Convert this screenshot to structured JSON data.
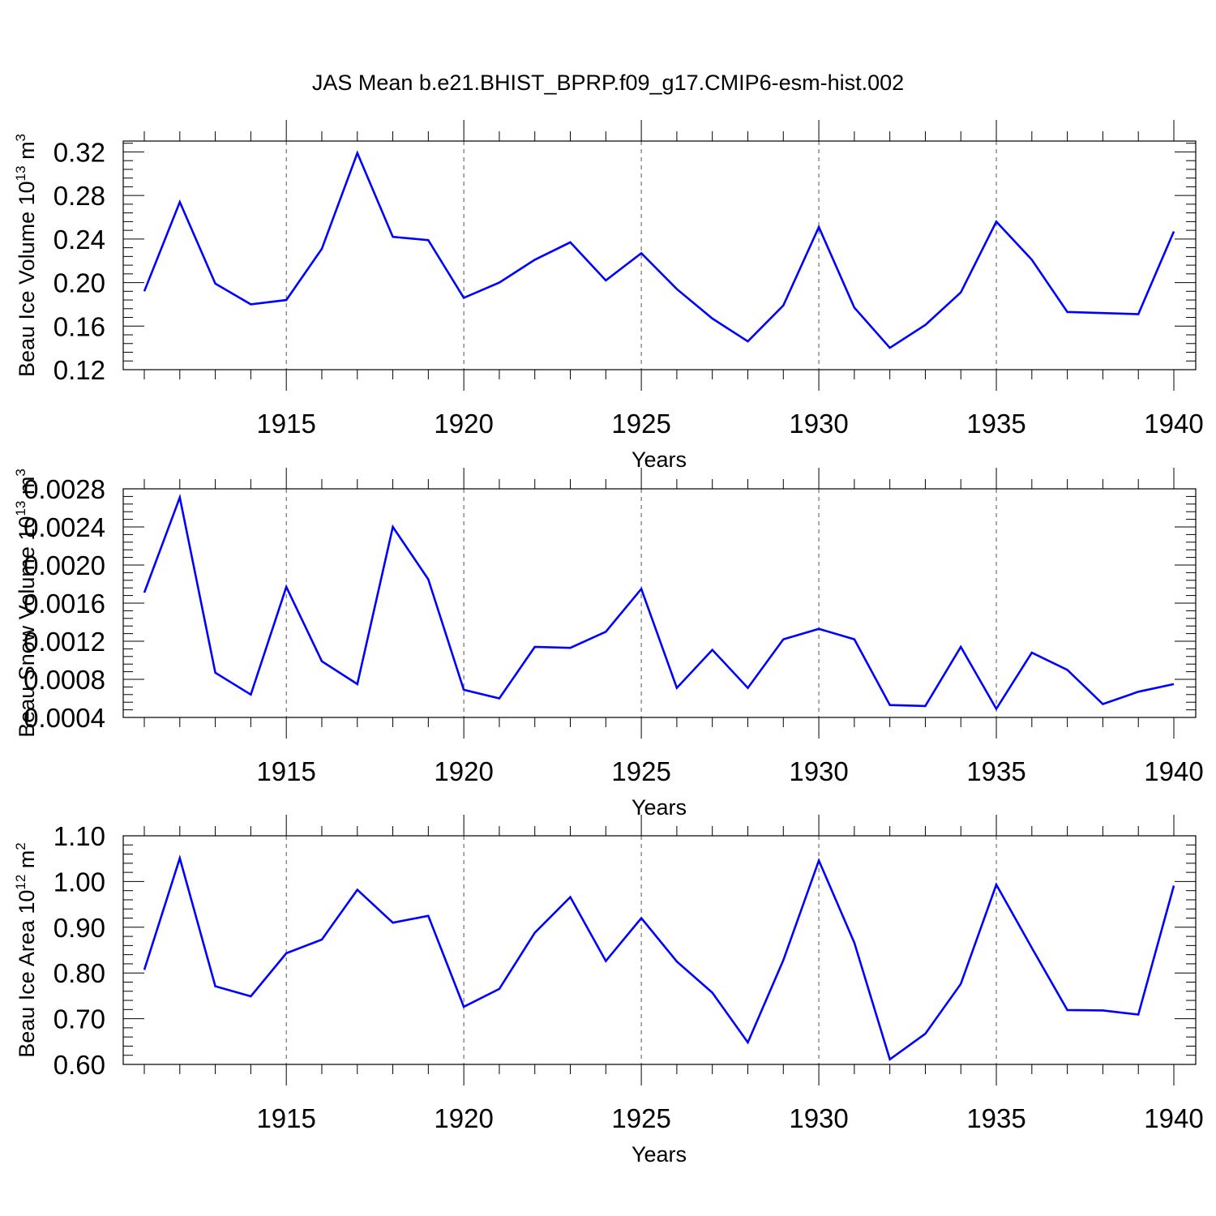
{
  "title": "JAS Mean b.e21.BHIST_BPRP.f09_g17.CMIP6-esm-hist.002",
  "colors": {
    "series": "#0000ff",
    "axis": "#000000",
    "grid": "#555555"
  },
  "chart_data": [
    {
      "type": "line",
      "xlabel": "Years",
      "ylabel": "Beau Ice Volume 10",
      "ylabel_sup": "13",
      "ylabel_unit": "m",
      "ylabel_unit_sup": "3",
      "xlim": [
        1911,
        1940
      ],
      "ylim": [
        0.12,
        0.33
      ],
      "x_ticks": [
        1915,
        1920,
        1925,
        1930,
        1935,
        1940
      ],
      "y_ticks": [
        "0.12",
        "0.16",
        "0.20",
        "0.24",
        "0.28",
        "0.32"
      ],
      "grid": "vertical dashed at major x ticks",
      "x": [
        1911,
        1912,
        1913,
        1914,
        1915,
        1916,
        1917,
        1918,
        1919,
        1920,
        1921,
        1922,
        1923,
        1924,
        1925,
        1926,
        1927,
        1928,
        1929,
        1930,
        1931,
        1932,
        1933,
        1934,
        1935,
        1936,
        1937,
        1938,
        1939,
        1940
      ],
      "values": [
        0.192,
        0.274,
        0.199,
        0.18,
        0.184,
        0.231,
        0.319,
        0.242,
        0.239,
        0.186,
        0.2,
        0.221,
        0.237,
        0.202,
        0.227,
        0.194,
        0.167,
        0.146,
        0.179,
        0.251,
        0.177,
        0.14,
        0.161,
        0.191,
        0.256,
        0.221,
        0.173,
        0.172,
        0.171,
        0.247
      ]
    },
    {
      "type": "line",
      "xlabel": "Years",
      "ylabel": "Beau Snow Volume 10",
      "ylabel_sup": "13",
      "ylabel_unit": "m",
      "ylabel_unit_sup": "3",
      "xlim": [
        1911,
        1940
      ],
      "ylim": [
        0.0004,
        0.0028
      ],
      "x_ticks": [
        1915,
        1920,
        1925,
        1930,
        1935,
        1940
      ],
      "y_ticks": [
        "0.0004",
        "0.0008",
        "0.0012",
        "0.0016",
        "0.0020",
        "0.0024",
        "0.0028"
      ],
      "grid": "vertical dashed at major x ticks",
      "x": [
        1911,
        1912,
        1913,
        1914,
        1915,
        1916,
        1917,
        1918,
        1919,
        1920,
        1921,
        1922,
        1923,
        1924,
        1925,
        1926,
        1927,
        1928,
        1929,
        1930,
        1931,
        1932,
        1933,
        1934,
        1935,
        1936,
        1937,
        1938,
        1939,
        1940
      ],
      "values": [
        0.00171,
        0.00271,
        0.00087,
        0.00064,
        0.00177,
        0.00099,
        0.00075,
        0.0024,
        0.00185,
        0.00069,
        0.0006,
        0.00114,
        0.00113,
        0.0013,
        0.00175,
        0.00071,
        0.00111,
        0.00071,
        0.00122,
        0.00133,
        0.00122,
        0.00053,
        0.00052,
        0.00114,
        0.00049,
        0.00108,
        0.0009,
        0.00054,
        0.00067,
        0.00075
      ]
    },
    {
      "type": "line",
      "xlabel": "Years",
      "ylabel": "Beau Ice Area 10",
      "ylabel_sup": "12",
      "ylabel_unit": "m",
      "ylabel_unit_sup": "2",
      "xlim": [
        1911,
        1940
      ],
      "ylim": [
        0.6,
        1.1
      ],
      "x_ticks": [
        1915,
        1920,
        1925,
        1930,
        1935,
        1940
      ],
      "y_ticks": [
        "0.60",
        "0.70",
        "0.80",
        "0.90",
        "1.00",
        "1.10"
      ],
      "grid": "vertical dashed at major x ticks",
      "x": [
        1911,
        1912,
        1913,
        1914,
        1915,
        1916,
        1917,
        1918,
        1919,
        1920,
        1921,
        1922,
        1923,
        1924,
        1925,
        1926,
        1927,
        1928,
        1929,
        1930,
        1931,
        1932,
        1933,
        1934,
        1935,
        1936,
        1937,
        1938,
        1939,
        1940
      ],
      "values": [
        0.807,
        1.051,
        0.771,
        0.749,
        0.843,
        0.873,
        0.982,
        0.91,
        0.925,
        0.726,
        0.765,
        0.888,
        0.966,
        0.826,
        0.92,
        0.825,
        0.757,
        0.648,
        0.828,
        1.046,
        0.866,
        0.611,
        0.667,
        0.776,
        0.993,
        0.855,
        0.719,
        0.718,
        0.709,
        0.991
      ]
    }
  ]
}
